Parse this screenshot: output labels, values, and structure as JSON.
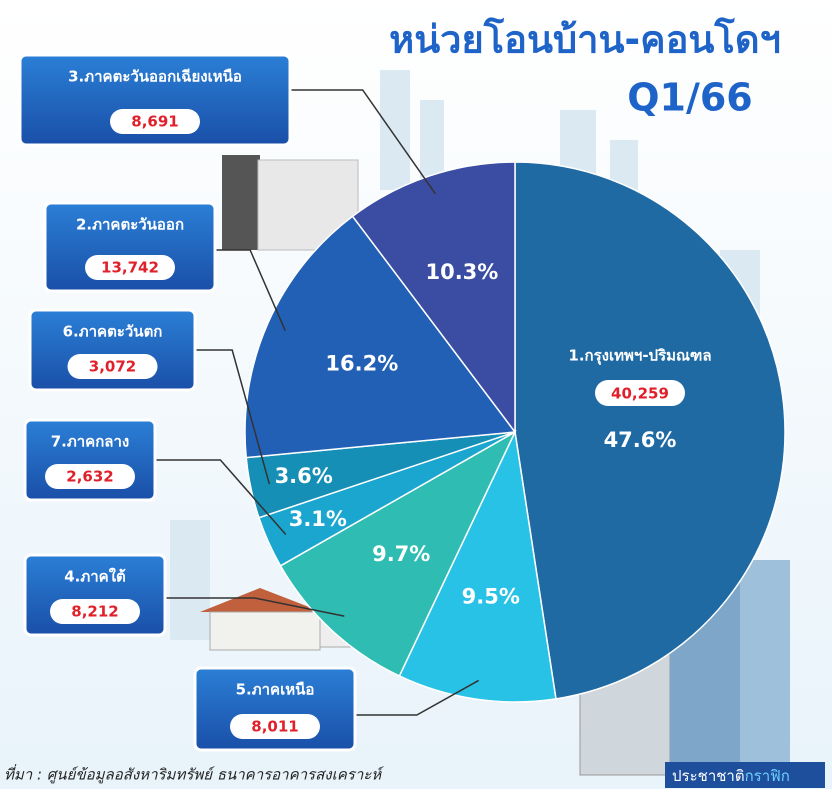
{
  "chart_data": {
    "type": "pie",
    "title": "หน่วยโอนบ้าน-คอนโดฯ",
    "subtitle": "Q1/66",
    "categories": [
      "1.กรุงเทพฯ-ปริมณฑล",
      "5.ภาคเหนือ",
      "4.ภาคใต้",
      "7.ภาคกลาง",
      "6.ภาคตะวันตก",
      "2.ภาคตะวันออก",
      "3.ภาคตะวันออกเฉียงเหนือ"
    ],
    "values": [
      40259,
      8011,
      8212,
      2632,
      3072,
      13742,
      8691
    ],
    "value_labels": [
      "40,259",
      "8,011",
      "8,212",
      "2,632",
      "3,072",
      "13,742",
      "8,691"
    ],
    "percents": [
      47.6,
      9.5,
      9.7,
      3.1,
      3.6,
      16.2,
      10.3
    ],
    "percent_labels": [
      "47.6%",
      "9.5%",
      "9.7%",
      "3.1%",
      "3.6%",
      "16.2%",
      "10.3%"
    ],
    "colors": [
      "#1f6aa3",
      "#27c2e6",
      "#2fbcb2",
      "#1ba6cf",
      "#168fb6",
      "#2260b5",
      "#3a4da3"
    ],
    "source": "ที่มา : ศูนย์ข้อมูลอสังหาริมทรัพย์ ธนาคารอาคารสงเคราะห์",
    "credit": [
      "ประชาชาติ",
      "กราฟิก"
    ]
  }
}
